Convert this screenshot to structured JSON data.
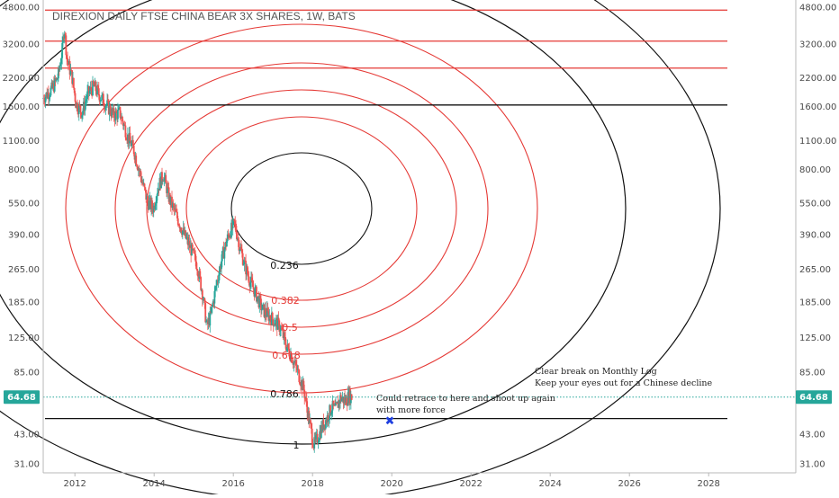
{
  "chart_data": {
    "type": "candlestick",
    "title": "DIREXION DAILY FTSE CHINA BEAR 3X SHARES, 1W, BATS",
    "price_scale": "log",
    "ylim": [
      28,
      5200
    ],
    "xlim": [
      2011.2,
      2030.2
    ],
    "y_ticks": [
      4800,
      3200,
      2200,
      1600,
      1100,
      800,
      550,
      390,
      265,
      185,
      125,
      85,
      64.68,
      43,
      31
    ],
    "y_tick_labels": [
      "4800.00",
      "3200.00",
      "2200.00",
      "1600.00",
      "1100.00",
      "800.00",
      "550.00",
      "390.00",
      "265.00",
      "185.00",
      "125.00",
      "85.00",
      "64.68",
      "43.00",
      "31.00"
    ],
    "x_ticks": [
      2012,
      2014,
      2016,
      2018,
      2020,
      2022,
      2024,
      2026,
      2028
    ],
    "x_tick_labels": [
      "2012",
      "2014",
      "2016",
      "2018",
      "2020",
      "2022",
      "2024",
      "2026",
      "2028"
    ],
    "last_price": 64.68,
    "last_price_label": "64.68",
    "price_path": [
      {
        "t": 2011.2,
        "p": 1750
      },
      {
        "t": 2011.45,
        "p": 1950
      },
      {
        "t": 2011.6,
        "p": 2250
      },
      {
        "t": 2011.7,
        "p": 3000
      },
      {
        "t": 2011.75,
        "p": 3900
      },
      {
        "t": 2011.82,
        "p": 2700
      },
      {
        "t": 2011.95,
        "p": 2200
      },
      {
        "t": 2012.05,
        "p": 1650
      },
      {
        "t": 2012.2,
        "p": 1500
      },
      {
        "t": 2012.35,
        "p": 1850
      },
      {
        "t": 2012.5,
        "p": 2000
      },
      {
        "t": 2012.65,
        "p": 1800
      },
      {
        "t": 2012.85,
        "p": 1600
      },
      {
        "t": 2013.0,
        "p": 1450
      },
      {
        "t": 2013.15,
        "p": 1500
      },
      {
        "t": 2013.35,
        "p": 1150
      },
      {
        "t": 2013.5,
        "p": 1000
      },
      {
        "t": 2013.7,
        "p": 720
      },
      {
        "t": 2013.85,
        "p": 560
      },
      {
        "t": 2014.0,
        "p": 520
      },
      {
        "t": 2014.1,
        "p": 640
      },
      {
        "t": 2014.25,
        "p": 760
      },
      {
        "t": 2014.4,
        "p": 580
      },
      {
        "t": 2014.6,
        "p": 470
      },
      {
        "t": 2014.8,
        "p": 380
      },
      {
        "t": 2014.95,
        "p": 330
      },
      {
        "t": 2015.1,
        "p": 280
      },
      {
        "t": 2015.25,
        "p": 200
      },
      {
        "t": 2015.35,
        "p": 140
      },
      {
        "t": 2015.45,
        "p": 160
      },
      {
        "t": 2015.6,
        "p": 230
      },
      {
        "t": 2015.75,
        "p": 310
      },
      {
        "t": 2015.9,
        "p": 390
      },
      {
        "t": 2016.05,
        "p": 440
      },
      {
        "t": 2016.15,
        "p": 360
      },
      {
        "t": 2016.3,
        "p": 280
      },
      {
        "t": 2016.45,
        "p": 230
      },
      {
        "t": 2016.6,
        "p": 200
      },
      {
        "t": 2016.75,
        "p": 170
      },
      {
        "t": 2016.9,
        "p": 160
      },
      {
        "t": 2017.05,
        "p": 150
      },
      {
        "t": 2017.2,
        "p": 140
      },
      {
        "t": 2017.35,
        "p": 115
      },
      {
        "t": 2017.5,
        "p": 100
      },
      {
        "t": 2017.65,
        "p": 85
      },
      {
        "t": 2017.8,
        "p": 70
      },
      {
        "t": 2017.95,
        "p": 48
      },
      {
        "t": 2018.05,
        "p": 38
      },
      {
        "t": 2018.12,
        "p": 40
      },
      {
        "t": 2018.25,
        "p": 46
      },
      {
        "t": 2018.4,
        "p": 52
      },
      {
        "t": 2018.5,
        "p": 58
      },
      {
        "t": 2018.6,
        "p": 56
      },
      {
        "t": 2018.72,
        "p": 64
      },
      {
        "t": 2018.85,
        "p": 62
      },
      {
        "t": 2018.95,
        "p": 66
      },
      {
        "t": 2019.0,
        "p": 64.68
      }
    ],
    "fib_circles": [
      {
        "level": "0.236",
        "color": "#111111"
      },
      {
        "level": "0.382",
        "color": "#e53935"
      },
      {
        "level": "0.5",
        "color": "#e53935"
      },
      {
        "level": "0.618",
        "color": "#e53935"
      },
      {
        "level": "0.786",
        "color": "#111111"
      },
      {
        "level": "1",
        "color": "#111111"
      }
    ],
    "fib_labels": [
      "0.236",
      "0.382",
      "0.5",
      "0.618",
      "0.786",
      "1"
    ],
    "horizontal_lines": [
      {
        "price": 4650,
        "color": "#e53935"
      },
      {
        "price": 3300,
        "color": "#e53935"
      },
      {
        "price": 2450,
        "color": "#e53935"
      },
      {
        "price": 1630,
        "color": "#111111"
      },
      {
        "price": 51,
        "color": "#111111"
      }
    ],
    "dotted_price_line": 64.68,
    "marker": {
      "t": 2019.95,
      "p": 50,
      "symbol": "✖",
      "color": "#1e3ee0"
    },
    "annotations": {
      "retrace_line1": "Could retrace to here and shoot up again",
      "retrace_line2": "with more force",
      "break_line1": "Clear break on Monthly Log",
      "break_line2": "Keep your eyes out for a Chinese decline"
    },
    "colors": {
      "up": "#26a69a",
      "down": "#ef5350",
      "price_tag": "#26a69a",
      "dotted_line": "#26a69a",
      "axis_text": "#4a4a4a"
    }
  }
}
